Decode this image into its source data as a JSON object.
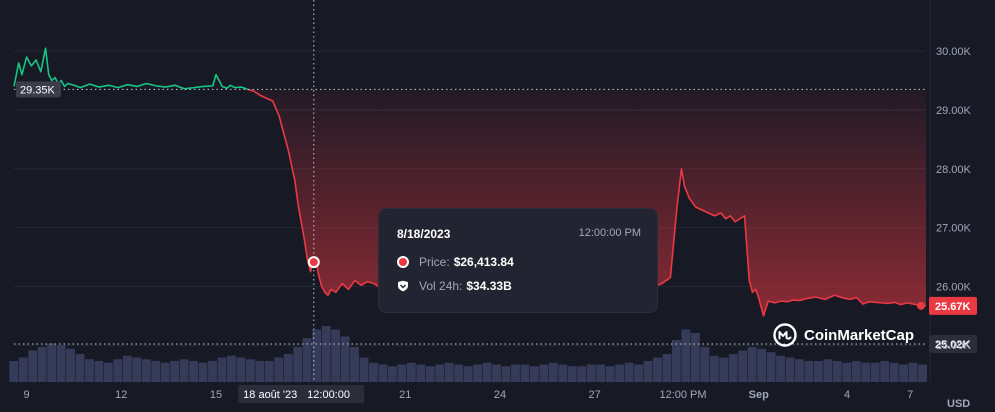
{
  "chart_data": {
    "type": "line",
    "price_scale": {
      "ylim": [
        24800,
        30700
      ],
      "ticks": [
        25000,
        26000,
        27000,
        28000,
        29000,
        30000
      ],
      "tick_labels": [
        "25.00K",
        "26.00K",
        "27.00K",
        "28.00K",
        "29.00K",
        "30.00K"
      ],
      "unit_label": "USD"
    },
    "x_ticks": [
      "9",
      "12",
      "15",
      "18 août '23",
      "21",
      "24",
      "27",
      "12:00 PM",
      "Sep",
      "4",
      "7"
    ],
    "baseline": {
      "value": 29350,
      "label": "29.35K"
    },
    "crosshair": {
      "value": 25020,
      "label": "25.02K"
    },
    "last_price": {
      "value": 25670,
      "label": "25.67K"
    },
    "series": [
      {
        "kind": "price",
        "x": [
          8.6,
          8.75,
          8.85,
          9.0,
          9.15,
          9.3,
          9.45,
          9.6,
          9.7,
          9.8,
          9.9,
          10.0,
          10.1,
          10.2,
          10.3,
          10.5,
          10.7,
          11.0,
          11.3,
          11.6,
          11.9,
          12.2,
          12.5,
          12.8,
          13.1,
          13.4,
          13.7,
          14.0,
          14.3,
          14.6,
          14.9,
          15.0,
          15.2,
          15.35,
          15.45,
          15.6,
          15.8,
          16.0,
          16.2,
          16.4,
          16.6,
          16.8,
          17.0,
          17.15,
          17.3,
          17.4,
          17.5,
          17.6,
          17.7,
          17.8,
          17.9,
          18.0,
          18.05,
          18.15,
          18.25,
          18.35,
          18.45,
          18.55,
          18.65,
          18.8,
          19.0,
          19.2,
          19.4,
          19.6,
          19.8,
          20.0,
          20.2,
          20.4,
          20.6,
          20.8,
          21.0,
          21.3,
          21.6,
          21.9,
          22.2,
          22.5,
          22.8,
          23.1,
          23.4,
          23.7,
          24.0,
          24.3,
          24.6,
          24.9,
          25.2,
          25.5,
          25.8,
          26.1,
          26.4,
          26.7,
          27.0,
          27.3,
          27.6,
          27.9,
          28.2,
          28.5,
          28.8,
          29.1,
          29.4,
          29.6,
          29.75,
          29.85,
          30.0,
          30.2,
          30.4,
          30.6,
          30.8,
          31.0,
          31.15,
          31.3,
          31.45,
          31.6,
          31.75,
          31.9,
          32.0,
          32.1,
          32.2,
          32.35,
          32.5,
          32.7,
          32.9,
          33.1,
          33.3,
          33.5,
          33.7,
          34.0,
          34.3,
          34.6,
          34.9,
          35.1,
          35.3,
          35.5,
          35.7,
          35.9,
          36.1,
          36.3,
          36.5,
          36.7,
          36.9,
          37.1,
          37.3,
          37.5
        ],
        "values": [
          29400,
          29800,
          29600,
          29900,
          29750,
          29850,
          29650,
          30050,
          29600,
          29500,
          29550,
          29450,
          29500,
          29400,
          29450,
          29420,
          29380,
          29440,
          29390,
          29420,
          29380,
          29430,
          29400,
          29450,
          29410,
          29390,
          29420,
          29360,
          29380,
          29400,
          29410,
          29600,
          29400,
          29370,
          29420,
          29380,
          29390,
          29350,
          29320,
          29250,
          29200,
          29150,
          28900,
          28600,
          28300,
          28050,
          27800,
          27400,
          27100,
          26800,
          26450,
          26250,
          26400,
          26500,
          26200,
          26000,
          25900,
          25850,
          25950,
          25900,
          26050,
          25950,
          26100,
          26020,
          26080,
          26050,
          25980,
          26030,
          26020,
          26060,
          26020,
          26000,
          26050,
          26030,
          25990,
          26060,
          26010,
          26040,
          26080,
          26020,
          26030,
          25990,
          26060,
          26040,
          26050,
          26030,
          26060,
          26020,
          26100,
          26050,
          26030,
          25990,
          26060,
          26070,
          26080,
          26050,
          26000,
          26040,
          26150,
          27300,
          28000,
          27700,
          27500,
          27350,
          27300,
          27250,
          27200,
          27250,
          27150,
          27200,
          27100,
          27150,
          27200,
          26100,
          25900,
          25950,
          25800,
          25500,
          25750,
          25720,
          25750,
          25740,
          25770,
          25760,
          25790,
          25820,
          25780,
          25850,
          25800,
          25780,
          25810,
          25700,
          25740,
          25730,
          25720,
          25710,
          25730,
          25690,
          25720,
          25700,
          25680,
          25670
        ]
      },
      {
        "kind": "volume",
        "x": [
          8.6,
          8.9,
          9.2,
          9.5,
          9.8,
          10.1,
          10.4,
          10.7,
          11.0,
          11.3,
          11.6,
          11.9,
          12.2,
          12.5,
          12.8,
          13.1,
          13.4,
          13.7,
          14.0,
          14.3,
          14.6,
          14.9,
          15.2,
          15.5,
          15.8,
          16.1,
          16.4,
          16.7,
          17.0,
          17.3,
          17.6,
          17.9,
          18.2,
          18.5,
          18.8,
          19.1,
          19.4,
          19.7,
          20.0,
          20.3,
          20.6,
          20.9,
          21.2,
          21.5,
          21.8,
          22.1,
          22.4,
          22.7,
          23.0,
          23.3,
          23.6,
          23.9,
          24.2,
          24.5,
          24.8,
          25.1,
          25.4,
          25.7,
          26.0,
          26.3,
          26.6,
          26.9,
          27.2,
          27.5,
          27.8,
          28.1,
          28.4,
          28.7,
          29.0,
          29.3,
          29.6,
          29.9,
          30.2,
          30.5,
          30.8,
          31.1,
          31.4,
          31.7,
          32.0,
          32.3,
          32.6,
          32.9,
          33.2,
          33.5,
          33.8,
          34.1,
          34.4,
          34.7,
          35.0,
          35.3,
          35.6,
          35.9,
          36.2,
          36.5,
          36.8,
          37.1,
          37.4
        ],
        "values": [
          12,
          14,
          18,
          20,
          22,
          21,
          19,
          16,
          13,
          12,
          11,
          13,
          15,
          14,
          13,
          12,
          11,
          12,
          13,
          12,
          11,
          12,
          14,
          15,
          14,
          13,
          12,
          12,
          14,
          16,
          20,
          25,
          30,
          32,
          30,
          26,
          20,
          14,
          11,
          10,
          9,
          10,
          11,
          10,
          9,
          10,
          11,
          10,
          9,
          10,
          11,
          10,
          9,
          10,
          10,
          9,
          10,
          11,
          10,
          9,
          9,
          10,
          10,
          9,
          10,
          11,
          10,
          12,
          14,
          16,
          24,
          30,
          28,
          20,
          15,
          14,
          16,
          18,
          20,
          19,
          17,
          15,
          14,
          13,
          12,
          12,
          13,
          12,
          11,
          12,
          11,
          11,
          12,
          11,
          10,
          11,
          10
        ]
      }
    ]
  },
  "tooltip": {
    "date": "8/18/2023",
    "time": "12:00:00 PM",
    "price_label": "Price:",
    "price_value": "$26,413.84",
    "vol_label": "Vol 24h:",
    "vol_value": "$34.33B"
  },
  "crosshair_time": {
    "date_label": "18 août '23",
    "time_label": "12:00:00"
  },
  "hover_point": {
    "x": 18.1,
    "value": 26414
  },
  "brand": {
    "name": "CoinMarketCap"
  },
  "colors": {
    "background": "#171924",
    "grid": "#262936",
    "up": "#16c784",
    "down": "#ea3943",
    "axis_text": "#a1a7bb",
    "volume": "#3b4261",
    "tooltip_bg": "#222531"
  },
  "icons": {
    "tooltip_price": "red-dot-icon",
    "tooltip_volume": "volume-shield-icon",
    "brand_logo": "coinmarketcap-logo-icon"
  }
}
